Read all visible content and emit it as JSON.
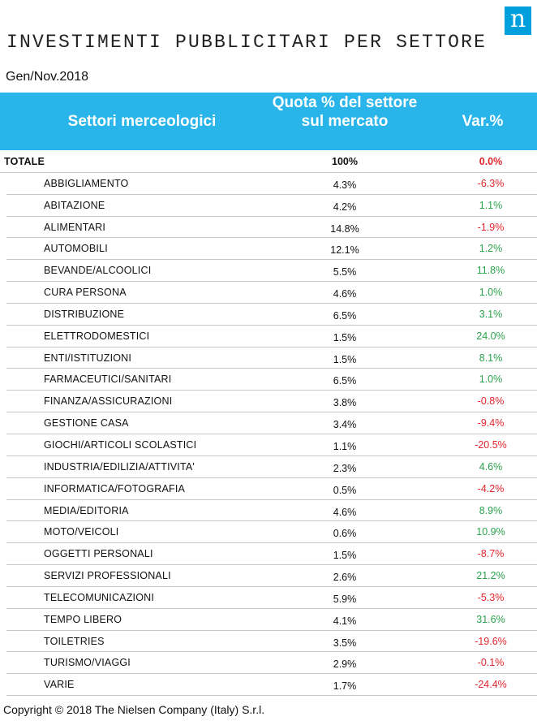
{
  "logo": "n",
  "title": "INVESTIMENTI PUBBLICITARI PER SETTORE",
  "period": "Gen/Nov.2018",
  "headers": {
    "sector": "Settori merceologici",
    "share": "Quota % del settore sul mercato",
    "var": "Var.%"
  },
  "colors": {
    "header_bg": "#29b5ea",
    "negative": "#e0262c",
    "positive": "#2ba24c"
  },
  "rows": [
    {
      "name": "TOTALE",
      "share": "100%",
      "var": "0.0%",
      "total": true
    },
    {
      "name": "ABBIGLIAMENTO",
      "share": "4.3%",
      "var": "-6.3%"
    },
    {
      "name": "ABITAZIONE",
      "share": "4.2%",
      "var": "1.1%"
    },
    {
      "name": "ALIMENTARI",
      "share": "14.8%",
      "var": "-1.9%"
    },
    {
      "name": "AUTOMOBILI",
      "share": "12.1%",
      "var": "1.2%"
    },
    {
      "name": "BEVANDE/ALCOOLICI",
      "share": "5.5%",
      "var": "11.8%"
    },
    {
      "name": "CURA PERSONA",
      "share": "4.6%",
      "var": "1.0%"
    },
    {
      "name": "DISTRIBUZIONE",
      "share": "6.5%",
      "var": "3.1%"
    },
    {
      "name": "ELETTRODOMESTICI",
      "share": "1.5%",
      "var": "24.0%"
    },
    {
      "name": "ENTI/ISTITUZIONI",
      "share": "1.5%",
      "var": "8.1%"
    },
    {
      "name": "FARMACEUTICI/SANITARI",
      "share": "6.5%",
      "var": "1.0%"
    },
    {
      "name": "FINANZA/ASSICURAZIONI",
      "share": "3.8%",
      "var": "-0.8%"
    },
    {
      "name": "GESTIONE CASA",
      "share": "3.4%",
      "var": "-9.4%"
    },
    {
      "name": "GIOCHI/ARTICOLI SCOLASTICI",
      "share": "1.1%",
      "var": "-20.5%"
    },
    {
      "name": "INDUSTRIA/EDILIZIA/ATTIVITA'",
      "share": "2.3%",
      "var": "4.6%"
    },
    {
      "name": "INFORMATICA/FOTOGRAFIA",
      "share": "0.5%",
      "var": "-4.2%"
    },
    {
      "name": "MEDIA/EDITORIA",
      "share": "4.6%",
      "var": "8.9%"
    },
    {
      "name": "MOTO/VEICOLI",
      "share": "0.6%",
      "var": "10.9%"
    },
    {
      "name": "OGGETTI PERSONALI",
      "share": "1.5%",
      "var": "-8.7%"
    },
    {
      "name": "SERVIZI PROFESSIONALI",
      "share": "2.6%",
      "var": "21.2%"
    },
    {
      "name": "TELECOMUNICAZIONI",
      "share": "5.9%",
      "var": "-5.3%"
    },
    {
      "name": "TEMPO LIBERO",
      "share": "4.1%",
      "var": "31.6%"
    },
    {
      "name": "TOILETRIES",
      "share": "3.5%",
      "var": "-19.6%"
    },
    {
      "name": "TURISMO/VIAGGI",
      "share": "2.9%",
      "var": "-0.1%"
    },
    {
      "name": "VARIE",
      "share": "1.7%",
      "var": "-24.4%"
    }
  ],
  "copyright": "Copyright © 2018 The Nielsen Company (Italy) S.r.l."
}
